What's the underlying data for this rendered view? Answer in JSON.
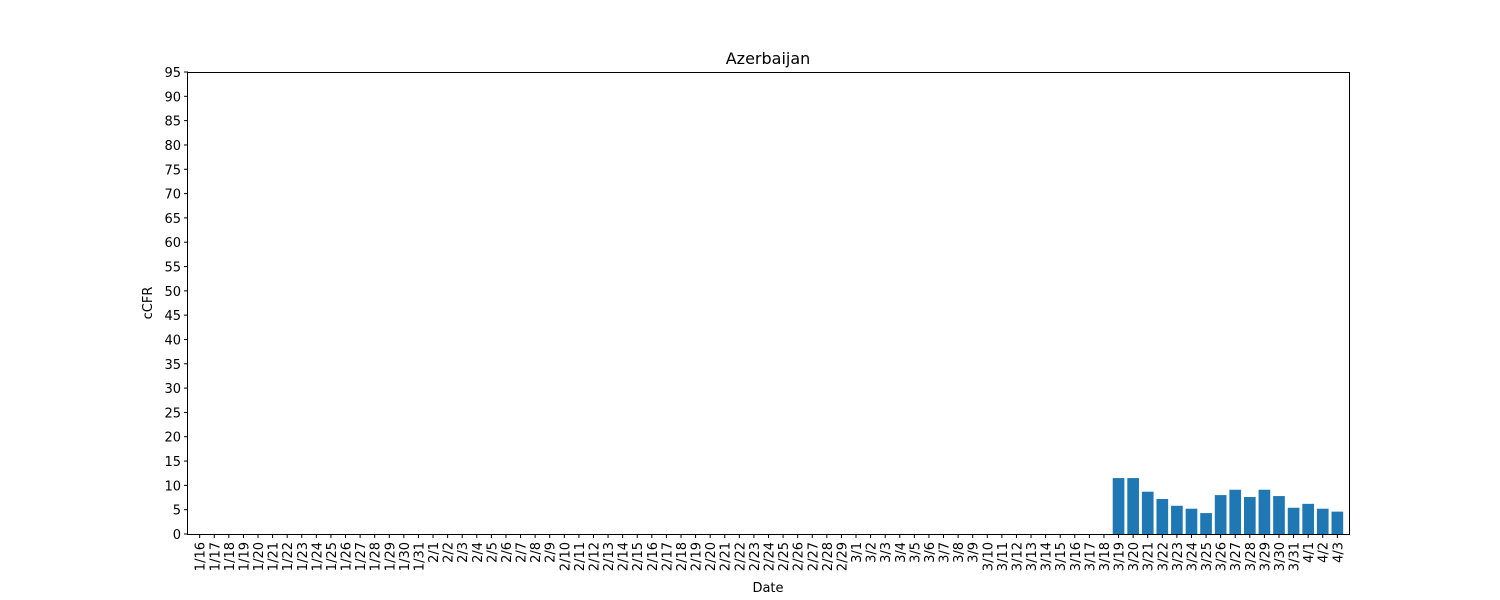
{
  "chart_data": {
    "type": "bar",
    "title": "Azerbaijan",
    "xlabel": "Date",
    "ylabel": "cCFR",
    "ylim": [
      0,
      95
    ],
    "yticks": [
      0,
      5,
      10,
      15,
      20,
      25,
      30,
      35,
      40,
      45,
      50,
      55,
      60,
      65,
      70,
      75,
      80,
      85,
      90,
      95
    ],
    "bar_color": "#1f77b4",
    "grid": false,
    "legend": "none",
    "categories": [
      "1/16",
      "1/17",
      "1/18",
      "1/19",
      "1/20",
      "1/21",
      "1/22",
      "1/23",
      "1/24",
      "1/25",
      "1/26",
      "1/27",
      "1/28",
      "1/29",
      "1/30",
      "1/31",
      "2/1",
      "2/2",
      "2/3",
      "2/4",
      "2/5",
      "2/6",
      "2/7",
      "2/8",
      "2/9",
      "2/10",
      "2/11",
      "2/12",
      "2/13",
      "2/14",
      "2/15",
      "2/16",
      "2/17",
      "2/18",
      "2/19",
      "2/20",
      "2/21",
      "2/22",
      "2/23",
      "2/24",
      "2/25",
      "2/26",
      "2/27",
      "2/28",
      "2/29",
      "3/1",
      "3/2",
      "3/3",
      "3/4",
      "3/5",
      "3/6",
      "3/7",
      "3/8",
      "3/9",
      "3/10",
      "3/11",
      "3/12",
      "3/13",
      "3/14",
      "3/15",
      "3/16",
      "3/17",
      "3/18",
      "3/19",
      "3/20",
      "3/21",
      "3/22",
      "3/23",
      "3/24",
      "3/25",
      "3/26",
      "3/27",
      "3/28",
      "3/29",
      "3/30",
      "3/31",
      "4/1",
      "4/2",
      "4/3"
    ],
    "values": [
      0,
      0,
      0,
      0,
      0,
      0,
      0,
      0,
      0,
      0,
      0,
      0,
      0,
      0,
      0,
      0,
      0,
      0,
      0,
      0,
      0,
      0,
      0,
      0,
      0,
      0,
      0,
      0,
      0,
      0,
      0,
      0,
      0,
      0,
      0,
      0,
      0,
      0,
      0,
      0,
      0,
      0,
      0,
      0,
      0,
      0,
      0,
      0,
      0,
      0,
      0,
      0,
      0,
      0,
      0,
      0,
      0,
      0,
      0,
      0,
      0,
      0,
      0,
      11.5,
      11.5,
      8.7,
      7.2,
      5.8,
      5.2,
      4.3,
      8.0,
      9.1,
      7.6,
      9.1,
      7.8,
      5.4,
      6.2,
      5.2,
      4.6
    ]
  }
}
